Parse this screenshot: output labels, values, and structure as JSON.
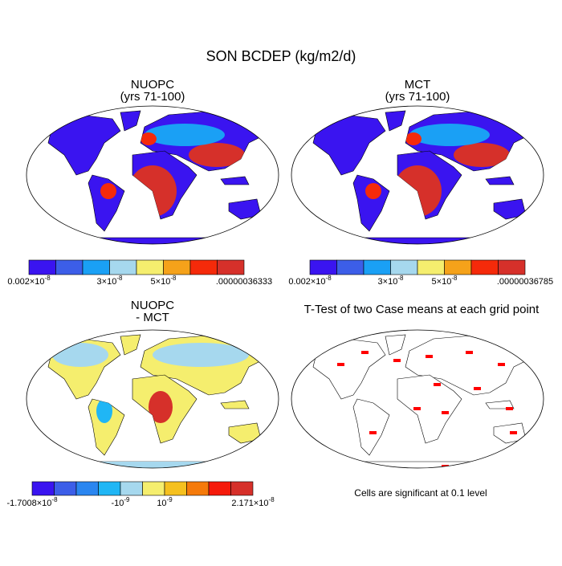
{
  "title": "SON BCDEP (kg/m2/d)",
  "panels": [
    {
      "title": [
        "NUOPC",
        "(yrs 71-100)"
      ],
      "colorbar": {
        "colors": [
          "#3a14f0",
          "#3c5ee8",
          "#1aa0f5",
          "#a6d8ee",
          "#f5ee6e",
          "#f5a21a",
          "#f52a0a",
          "#d6302a"
        ],
        "labels": [
          {
            "base": "0.002×10",
            "exp": "-8"
          },
          {
            "base": "3×10",
            "exp": "-8"
          },
          {
            "base": "5×10",
            "exp": "-8"
          },
          {
            "base": ".00000036333"
          }
        ]
      }
    },
    {
      "title": [
        "MCT",
        "(yrs 71-100)"
      ],
      "colorbar": {
        "colors": [
          "#3a14f0",
          "#3c5ee8",
          "#1aa0f5",
          "#a6d8ee",
          "#f5ee6e",
          "#f5a21a",
          "#f52a0a",
          "#d6302a"
        ],
        "labels": [
          {
            "base": "0.002×10",
            "exp": "-8"
          },
          {
            "base": "3×10",
            "exp": "-8"
          },
          {
            "base": "5×10",
            "exp": "-8"
          },
          {
            "base": ".00000036785"
          }
        ]
      }
    },
    {
      "title": [
        "NUOPC",
        "- MCT"
      ],
      "colorbar": {
        "colors": [
          "#3a14f0",
          "#3c5ee8",
          "#2a86f0",
          "#20b6f5",
          "#a6d8ee",
          "#f5ee6e",
          "#f5c01e",
          "#f57a0a",
          "#f51a0a",
          "#d6302a"
        ],
        "labels": [
          {
            "base": "-1.7008×10",
            "exp": "-8"
          },
          {
            "base": "-10",
            "exp": "-9"
          },
          {
            "base": "10",
            "exp": "-9"
          },
          {
            "base": "2.171×10",
            "exp": "-8"
          }
        ]
      }
    },
    {
      "title": [
        "T-Test of two Case means at each grid point"
      ],
      "note": "Cells are significant at 0.1 level"
    }
  ]
}
